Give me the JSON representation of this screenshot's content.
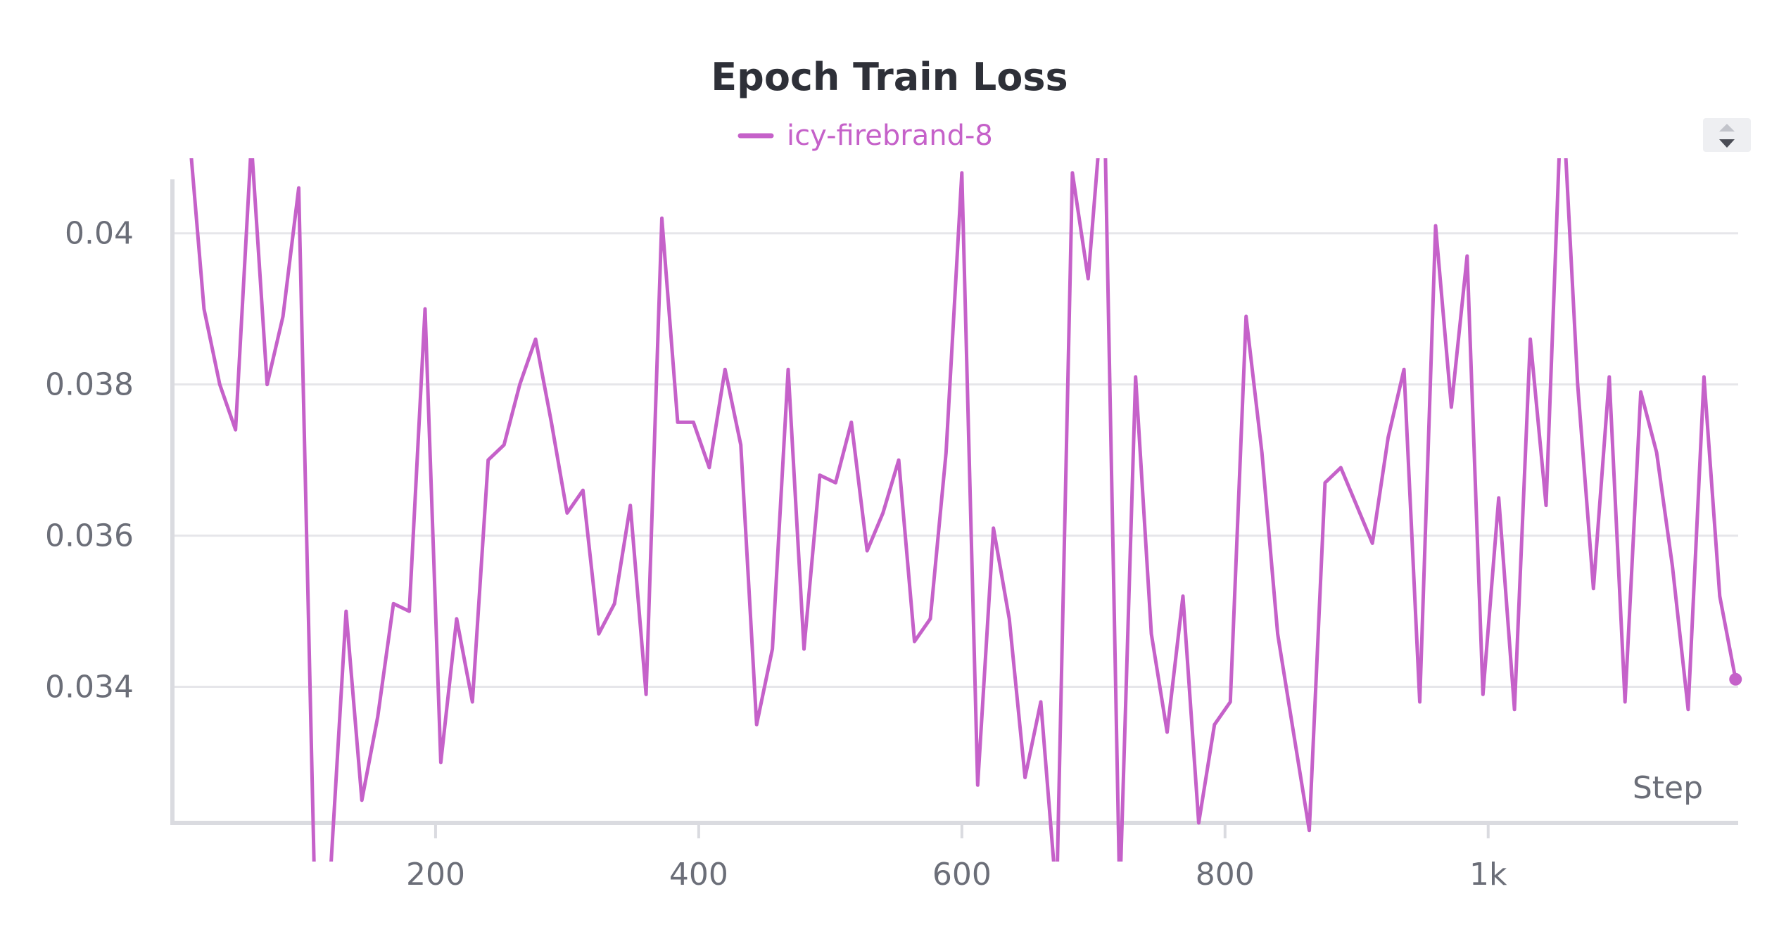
{
  "chart_data": {
    "type": "line",
    "title": "Epoch Train Loss",
    "xlabel": "Step",
    "ylabel": "",
    "xlim": [
      0,
      1190
    ],
    "ylim": [
      0.0322,
      0.0409
    ],
    "x_ticks": [
      {
        "value": 200,
        "label": "200"
      },
      {
        "value": 400,
        "label": "400"
      },
      {
        "value": 600,
        "label": "600"
      },
      {
        "value": 800,
        "label": "800"
      },
      {
        "value": 1000,
        "label": "1k"
      }
    ],
    "y_ticks": [
      {
        "value": 0.034,
        "label": "0.034"
      },
      {
        "value": 0.036,
        "label": "0.036"
      },
      {
        "value": 0.038,
        "label": "0.038"
      },
      {
        "value": 0.04,
        "label": "0.04"
      }
    ],
    "grid": true,
    "legend_position": "top-center",
    "series": [
      {
        "name": "icy-firebrand-8",
        "color": "#c561c9",
        "x": [
          12,
          24,
          36,
          48,
          60,
          72,
          84,
          96,
          108,
          120,
          132,
          144,
          156,
          168,
          180,
          192,
          204,
          216,
          228,
          240,
          252,
          264,
          276,
          288,
          300,
          312,
          324,
          336,
          348,
          360,
          372,
          384,
          396,
          408,
          420,
          432,
          444,
          456,
          468,
          480,
          492,
          504,
          516,
          528,
          540,
          552,
          564,
          576,
          588,
          600,
          612,
          624,
          636,
          648,
          660,
          672,
          684,
          696,
          708,
          720,
          732,
          744,
          756,
          768,
          780,
          792,
          804,
          816,
          828,
          840,
          852,
          864,
          876,
          888,
          900,
          912,
          924,
          936,
          948,
          960,
          972,
          984,
          996,
          1008,
          1020,
          1032,
          1044,
          1056,
          1068,
          1080,
          1092,
          1104,
          1116,
          1128,
          1140,
          1152,
          1164,
          1176,
          1188
        ],
        "y": [
          0.0415,
          0.039,
          0.038,
          0.0374,
          0.0412,
          0.038,
          0.0389,
          0.0406,
          0.0314,
          0.0315,
          0.035,
          0.0325,
          0.0336,
          0.0351,
          0.035,
          0.039,
          0.033,
          0.0349,
          0.0338,
          0.037,
          0.0372,
          0.038,
          0.0386,
          0.0375,
          0.0363,
          0.0366,
          0.0347,
          0.0351,
          0.0364,
          0.0339,
          0.0402,
          0.0375,
          0.0375,
          0.0369,
          0.0382,
          0.0372,
          0.0335,
          0.0345,
          0.0382,
          0.0345,
          0.0368,
          0.0367,
          0.0375,
          0.0358,
          0.0363,
          0.037,
          0.0346,
          0.0349,
          0.0371,
          0.0408,
          0.0327,
          0.0361,
          0.0349,
          0.0328,
          0.0338,
          0.0312,
          0.0408,
          0.0394,
          0.042,
          0.0312,
          0.0381,
          0.0347,
          0.0334,
          0.0352,
          0.0322,
          0.0335,
          0.0338,
          0.0389,
          0.0371,
          0.0347,
          0.0334,
          0.0321,
          0.0367,
          0.0369,
          0.0364,
          0.0359,
          0.0373,
          0.0382,
          0.0338,
          0.0401,
          0.0377,
          0.0397,
          0.0339,
          0.0365,
          0.0337,
          0.0386,
          0.0364,
          0.042,
          0.038,
          0.0353,
          0.0381,
          0.0338,
          0.0379,
          0.0371,
          0.0356,
          0.0337,
          0.0381,
          0.0352,
          0.0341
        ]
      }
    ]
  },
  "legend_scroll_control": {
    "icon": "sort-arrows-icon"
  }
}
